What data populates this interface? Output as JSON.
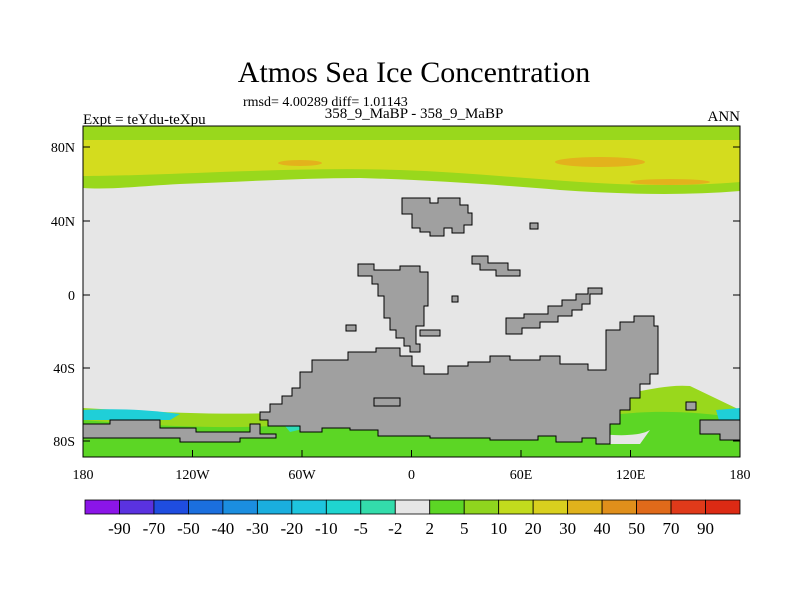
{
  "title": "Atmos Sea Ice Concentration",
  "stats": "rmsd= 4.00289 diff= 1.01143",
  "subtitle": "358_9_MaBP - 358_9_MaBP",
  "left_label": "Expt = teYdu-teXpu",
  "right_label": "ANN",
  "colors": {
    "land": "#a0a0a0",
    "ice_free": "#e6e6e6",
    "high_pos": "#d4dc1e",
    "mid_pos": "#99d81c",
    "low_pos": "#5cd625",
    "light_orange": "#e3b21c",
    "neg_cyan": "#1fcfd8",
    "neg_teal": "#30ddb8"
  },
  "chart_data": {
    "type": "map",
    "lon_ticks": [
      "180",
      "120W",
      "60W",
      "0",
      "60E",
      "120E",
      "180"
    ],
    "lat_ticks": [
      "80N",
      "40N",
      "0",
      "40S",
      "80S"
    ],
    "colorbar": {
      "labels": [
        "-90",
        "-70",
        "-50",
        "-40",
        "-30",
        "-20",
        "-10",
        "-5",
        "-2",
        "2",
        "5",
        "10",
        "20",
        "30",
        "40",
        "50",
        "70",
        "90"
      ],
      "colors": [
        "#8b15e8",
        "#5a32e0",
        "#1f4de0",
        "#1b6fde",
        "#1b8ee0",
        "#1aaede",
        "#1ec5de",
        "#1fd5d0",
        "#33dcab",
        "#e6e6e6",
        "#5cd625",
        "#8fd51e",
        "#c2db1d",
        "#d9d01e",
        "#e0b21c",
        "#e08f1b",
        "#e06a1a",
        "#e03a1a",
        "#dc2a14"
      ]
    }
  }
}
